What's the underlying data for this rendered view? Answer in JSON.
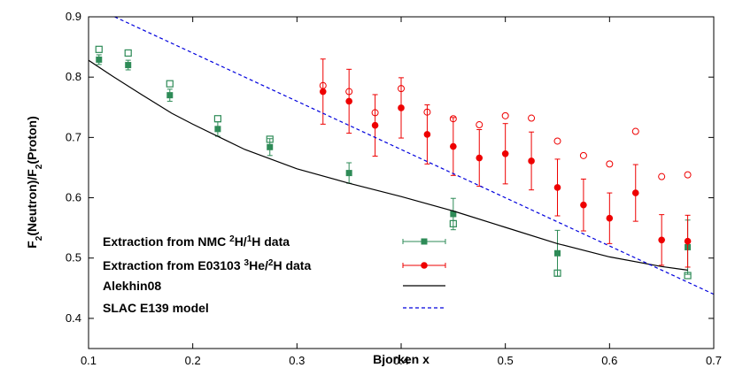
{
  "chart_data": {
    "type": "scatter",
    "xlabel": "Bjorken x",
    "ylabel_parts": [
      "F",
      "2",
      "(Neutron)/F",
      "2",
      "(Proton)"
    ],
    "xlim": [
      0.1,
      0.7
    ],
    "ylim": [
      0.35,
      0.9
    ],
    "xticks": [
      "0.1",
      "0.2",
      "0.3",
      "0.4",
      "0.5",
      "0.6",
      "0.7"
    ],
    "yticks": [
      "0.4",
      "0.5",
      "0.6",
      "0.7",
      "0.8",
      "0.9"
    ],
    "grid": false,
    "legend_position": "bottom-left",
    "legend": [
      {
        "parts": [
          "Extraction from NMC ",
          "2",
          "H/",
          "1",
          "H data"
        ],
        "sup": [
          false,
          true,
          false,
          true,
          false
        ]
      },
      {
        "parts": [
          "Extraction from E03103 ",
          "3",
          "He/",
          "2",
          "H data"
        ],
        "sup": [
          false,
          true,
          false,
          true,
          false
        ]
      },
      {
        "parts": [
          "Alekhin08"
        ],
        "sup": [
          false
        ]
      },
      {
        "parts": [
          "SLAC E139 model"
        ],
        "sup": [
          false
        ]
      }
    ],
    "series": [
      {
        "kind": "filled-square",
        "color": "#2e8b57",
        "points": [
          {
            "x": 0.11,
            "y": 0.829,
            "err": 0.008
          },
          {
            "x": 0.138,
            "y": 0.82,
            "err": 0.008
          },
          {
            "x": 0.178,
            "y": 0.77,
            "err": 0.01
          },
          {
            "x": 0.224,
            "y": 0.714,
            "err": 0.012
          },
          {
            "x": 0.274,
            "y": 0.684,
            "err": 0.014
          },
          {
            "x": 0.35,
            "y": 0.641,
            "err": 0.017
          },
          {
            "x": 0.45,
            "y": 0.573,
            "err": 0.026
          },
          {
            "x": 0.55,
            "y": 0.508,
            "err": 0.038
          },
          {
            "x": 0.675,
            "y": 0.518,
            "err": 0.045
          }
        ]
      },
      {
        "kind": "open-square",
        "color": "#2e8b57",
        "points": [
          {
            "x": 0.11,
            "y": 0.846
          },
          {
            "x": 0.138,
            "y": 0.84
          },
          {
            "x": 0.178,
            "y": 0.789
          },
          {
            "x": 0.224,
            "y": 0.731
          },
          {
            "x": 0.274,
            "y": 0.697
          },
          {
            "x": 0.45,
            "y": 0.557
          },
          {
            "x": 0.55,
            "y": 0.475
          },
          {
            "x": 0.675,
            "y": 0.471
          }
        ]
      },
      {
        "kind": "filled-circle",
        "color": "#ee0000",
        "points": [
          {
            "x": 0.325,
            "y": 0.776,
            "err": 0.054
          },
          {
            "x": 0.35,
            "y": 0.76,
            "err": 0.053
          },
          {
            "x": 0.375,
            "y": 0.72,
            "err": 0.051
          },
          {
            "x": 0.4,
            "y": 0.749,
            "err": 0.05
          },
          {
            "x": 0.425,
            "y": 0.705,
            "err": 0.049
          },
          {
            "x": 0.45,
            "y": 0.685,
            "err": 0.048
          },
          {
            "x": 0.475,
            "y": 0.666,
            "err": 0.047
          },
          {
            "x": 0.5,
            "y": 0.673,
            "err": 0.05
          },
          {
            "x": 0.525,
            "y": 0.661,
            "err": 0.048
          },
          {
            "x": 0.55,
            "y": 0.617,
            "err": 0.047
          },
          {
            "x": 0.575,
            "y": 0.588,
            "err": 0.043
          },
          {
            "x": 0.6,
            "y": 0.566,
            "err": 0.042
          },
          {
            "x": 0.625,
            "y": 0.608,
            "err": 0.047
          },
          {
            "x": 0.65,
            "y": 0.53,
            "err": 0.042
          },
          {
            "x": 0.675,
            "y": 0.528,
            "err": 0.043
          }
        ]
      },
      {
        "kind": "open-circle",
        "color": "#ee0000",
        "points": [
          {
            "x": 0.325,
            "y": 0.786
          },
          {
            "x": 0.35,
            "y": 0.776
          },
          {
            "x": 0.375,
            "y": 0.741
          },
          {
            "x": 0.4,
            "y": 0.781
          },
          {
            "x": 0.425,
            "y": 0.742
          },
          {
            "x": 0.45,
            "y": 0.731
          },
          {
            "x": 0.475,
            "y": 0.721
          },
          {
            "x": 0.5,
            "y": 0.736
          },
          {
            "x": 0.525,
            "y": 0.732
          },
          {
            "x": 0.55,
            "y": 0.694
          },
          {
            "x": 0.575,
            "y": 0.67
          },
          {
            "x": 0.6,
            "y": 0.656
          },
          {
            "x": 0.625,
            "y": 0.71
          },
          {
            "x": 0.65,
            "y": 0.635
          },
          {
            "x": 0.675,
            "y": 0.638
          }
        ]
      },
      {
        "kind": "line",
        "color": "#000000",
        "points": [
          {
            "x": 0.1,
            "y": 0.828
          },
          {
            "x": 0.12,
            "y": 0.805
          },
          {
            "x": 0.15,
            "y": 0.772
          },
          {
            "x": 0.18,
            "y": 0.74
          },
          {
            "x": 0.2,
            "y": 0.722
          },
          {
            "x": 0.25,
            "y": 0.68
          },
          {
            "x": 0.3,
            "y": 0.648
          },
          {
            "x": 0.35,
            "y": 0.624
          },
          {
            "x": 0.4,
            "y": 0.602
          },
          {
            "x": 0.45,
            "y": 0.578
          },
          {
            "x": 0.5,
            "y": 0.551
          },
          {
            "x": 0.55,
            "y": 0.524
          },
          {
            "x": 0.6,
            "y": 0.502
          },
          {
            "x": 0.65,
            "y": 0.486
          },
          {
            "x": 0.675,
            "y": 0.48
          }
        ]
      },
      {
        "kind": "dashed-line",
        "color": "#0000dd",
        "points": [
          {
            "x": 0.125,
            "y": 0.9
          },
          {
            "x": 0.7,
            "y": 0.44
          }
        ]
      }
    ]
  }
}
